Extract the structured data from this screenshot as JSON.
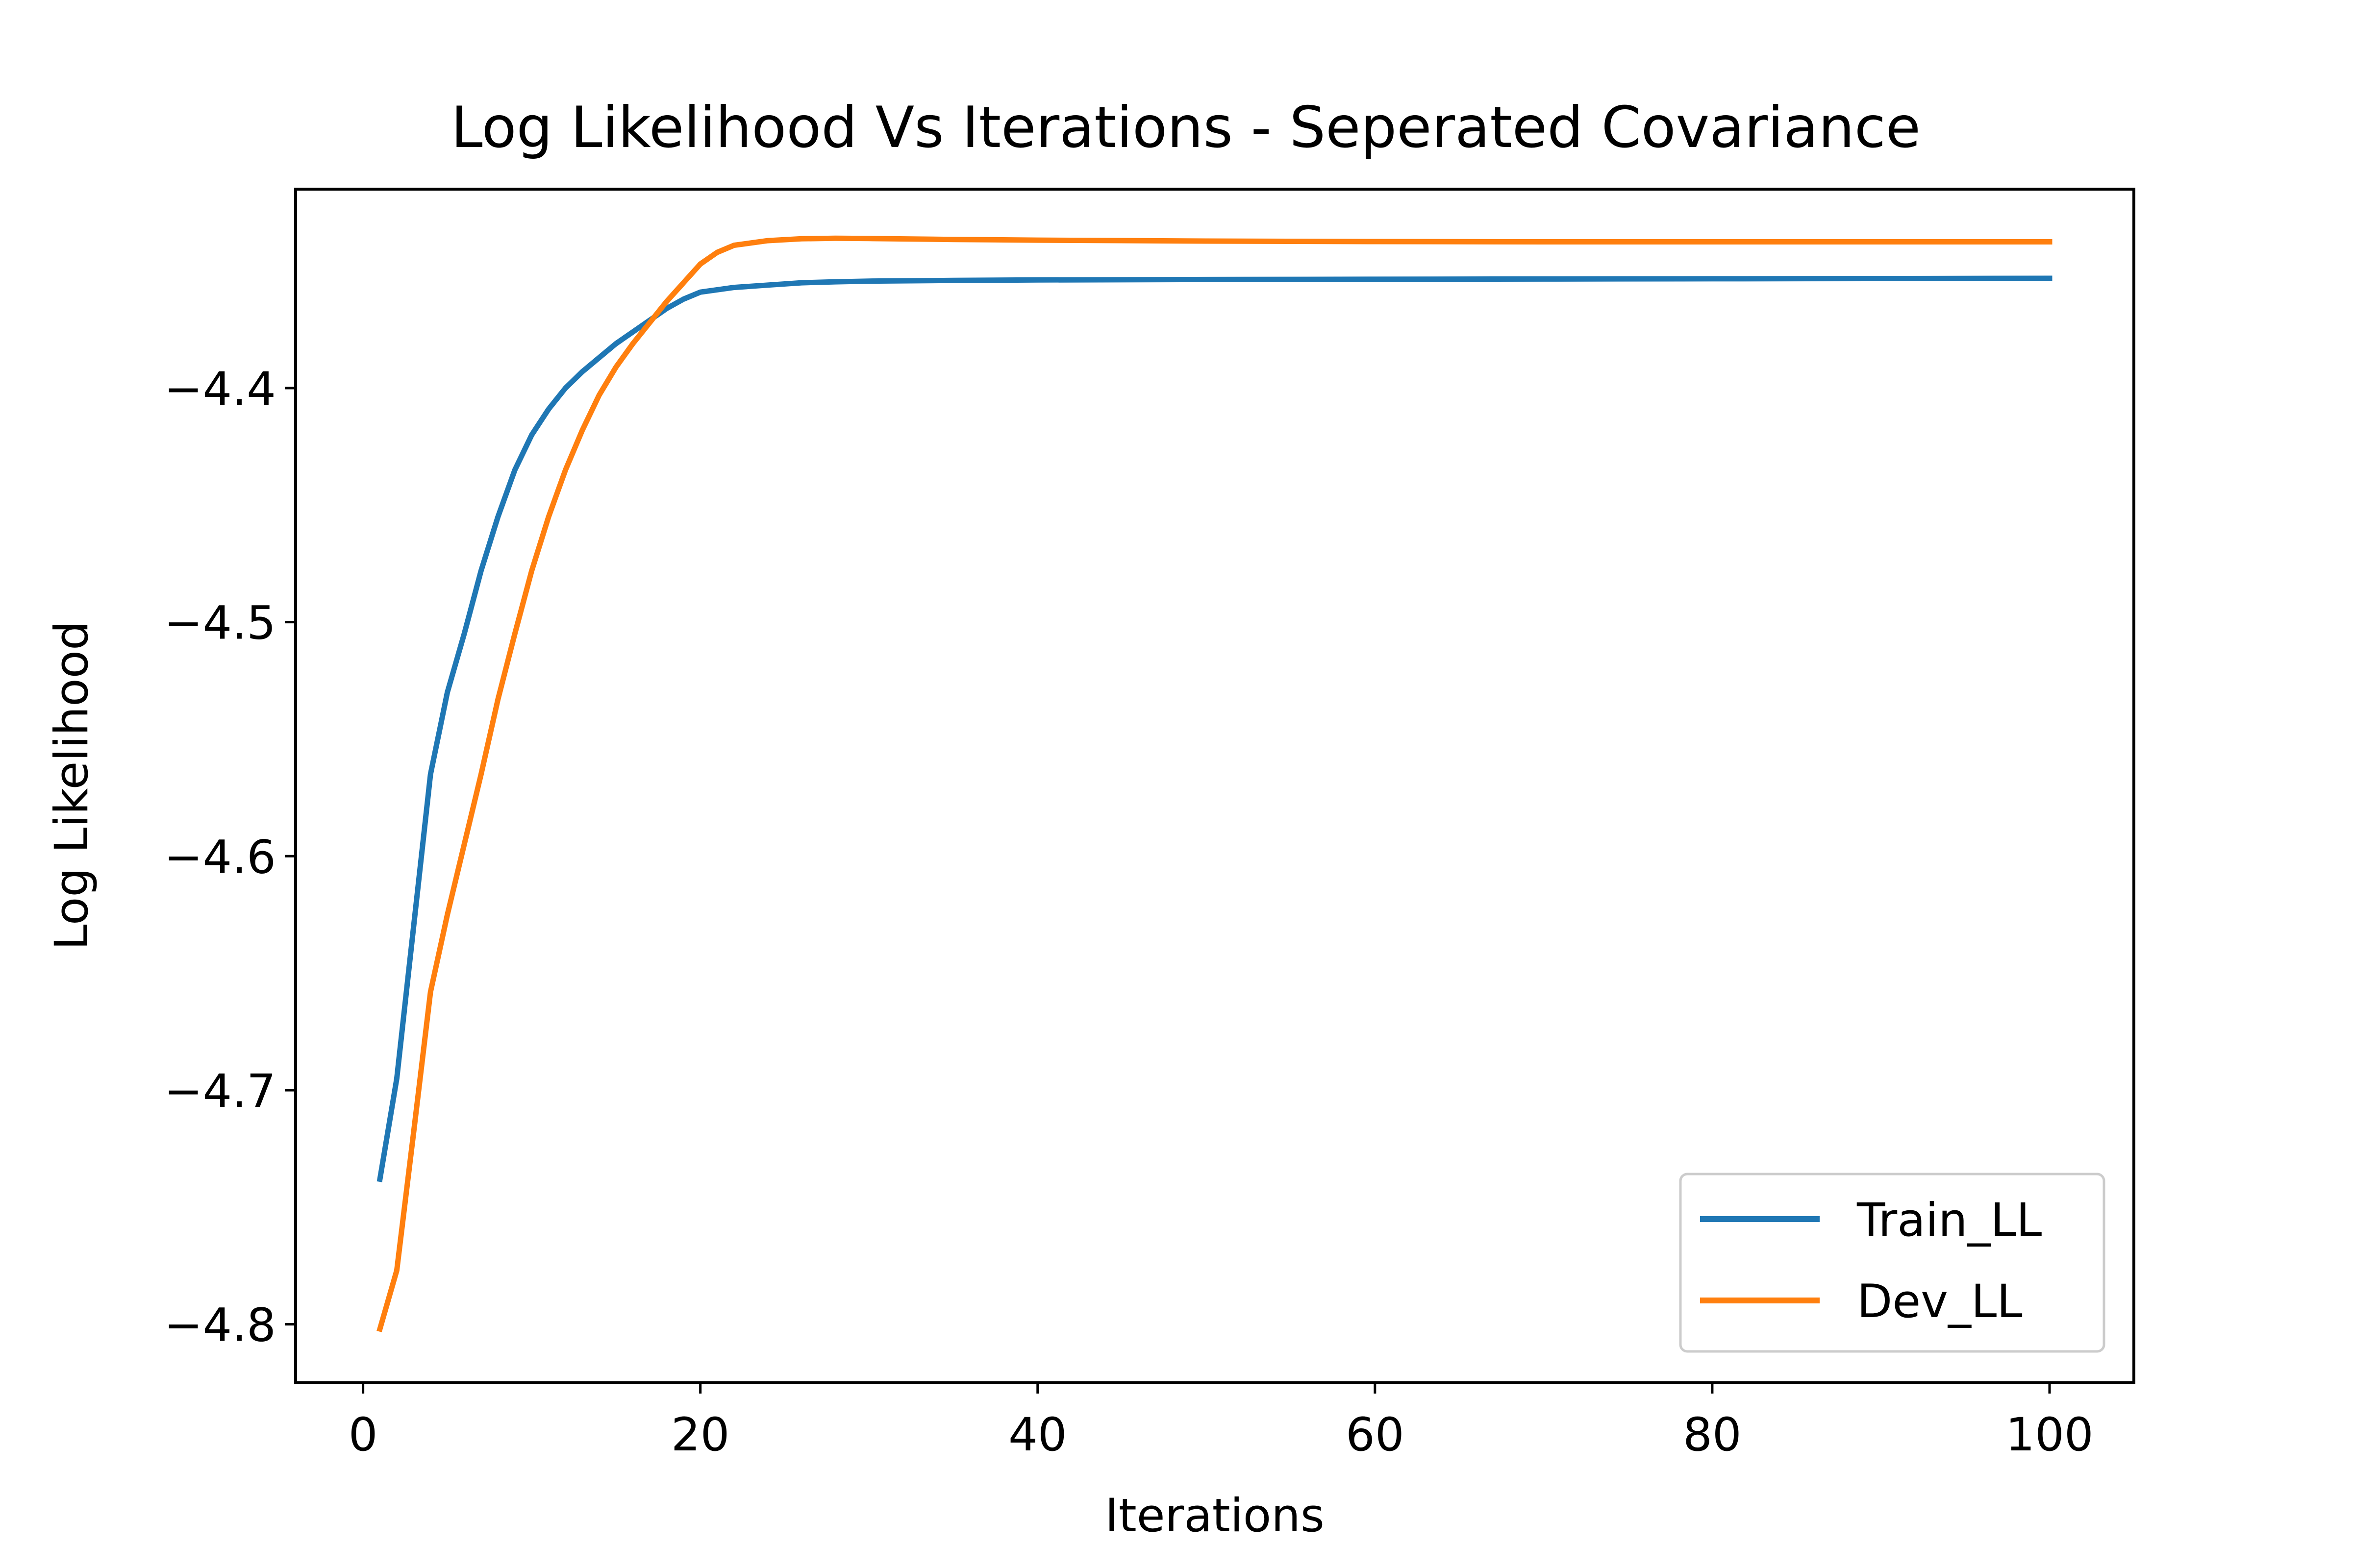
{
  "chart_data": {
    "type": "line",
    "title": "Log Likelihood Vs Iterations - Seperated Covariance",
    "xlabel": "Iterations",
    "ylabel": "Log Likelihood",
    "xlim": [
      -4,
      105
    ],
    "ylim": [
      -4.825,
      -4.315
    ],
    "xticks": [
      0,
      20,
      40,
      60,
      80,
      100
    ],
    "xtick_labels": [
      "0",
      "20",
      "40",
      "60",
      "80",
      "100"
    ],
    "yticks": [
      -4.4,
      -4.5,
      -4.6,
      -4.7,
      -4.8
    ],
    "ytick_labels": [
      "−4.4",
      "−4.5",
      "−4.6",
      "−4.7",
      "−4.8"
    ],
    "grid": false,
    "legend": "lower-right",
    "series": [
      {
        "name": "Train_LL",
        "color": "#1f77b4",
        "x": [
          1,
          2,
          3,
          4,
          5,
          6,
          7,
          8,
          9,
          10,
          11,
          12,
          13,
          14,
          15,
          16,
          17,
          18,
          19,
          20,
          22,
          24,
          26,
          28,
          30,
          35,
          40,
          50,
          60,
          70,
          80,
          90,
          100
        ],
        "y": [
          -4.738,
          -4.695,
          -4.63,
          -4.565,
          -4.53,
          -4.505,
          -4.478,
          -4.455,
          -4.435,
          -4.42,
          -4.409,
          -4.4,
          -4.393,
          -4.387,
          -4.381,
          -4.376,
          -4.371,
          -4.366,
          -4.362,
          -4.359,
          -4.357,
          -4.356,
          -4.355,
          -4.3546,
          -4.3543,
          -4.354,
          -4.3538,
          -4.3536,
          -4.3535,
          -4.3534,
          -4.3533,
          -4.3532,
          -4.3531
        ]
      },
      {
        "name": "Dev_LL",
        "color": "#ff7f0e",
        "x": [
          1,
          2,
          3,
          4,
          5,
          6,
          7,
          8,
          9,
          10,
          11,
          12,
          13,
          14,
          15,
          16,
          17,
          18,
          19,
          20,
          21,
          22,
          24,
          26,
          28,
          30,
          35,
          40,
          50,
          60,
          70,
          80,
          90,
          100
        ],
        "y": [
          -4.802,
          -4.777,
          -4.718,
          -4.658,
          -4.625,
          -4.595,
          -4.565,
          -4.533,
          -4.505,
          -4.478,
          -4.455,
          -4.435,
          -4.418,
          -4.403,
          -4.391,
          -4.381,
          -4.372,
          -4.363,
          -4.355,
          -4.347,
          -4.342,
          -4.339,
          -4.337,
          -4.3362,
          -4.336,
          -4.3361,
          -4.3365,
          -4.3368,
          -4.3372,
          -4.3374,
          -4.3375,
          -4.3375,
          -4.3375,
          -4.3375
        ]
      }
    ]
  }
}
